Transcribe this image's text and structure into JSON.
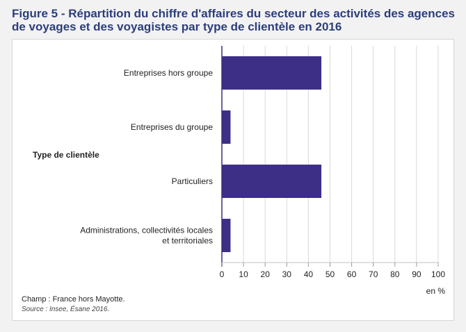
{
  "figure": {
    "title": "Figure 5 - Répartition du chiffre d'affaires du secteur des activités des agences de voyages et des voyagistes par type de clientèle en 2016",
    "scope_note": "Champ : France hors Mayotte.",
    "source": "Source : Insee, Ésane 2016."
  },
  "chart_data": {
    "type": "bar",
    "orientation": "horizontal",
    "categories": [
      [
        "Entreprises hors groupe"
      ],
      [
        "Entreprises du groupe"
      ],
      [
        "Particuliers"
      ],
      [
        "Administrations, collectivités locales",
        "et territoriales"
      ]
    ],
    "values": [
      46,
      4,
      46,
      4
    ],
    "xlabel": "en %",
    "ylabel": "Type de clientèle",
    "xlim": [
      0,
      100
    ],
    "xticks": [
      0,
      10,
      20,
      30,
      40,
      50,
      60,
      70,
      80,
      90,
      100
    ],
    "grid": true,
    "bar_color": "#3d2f86"
  }
}
